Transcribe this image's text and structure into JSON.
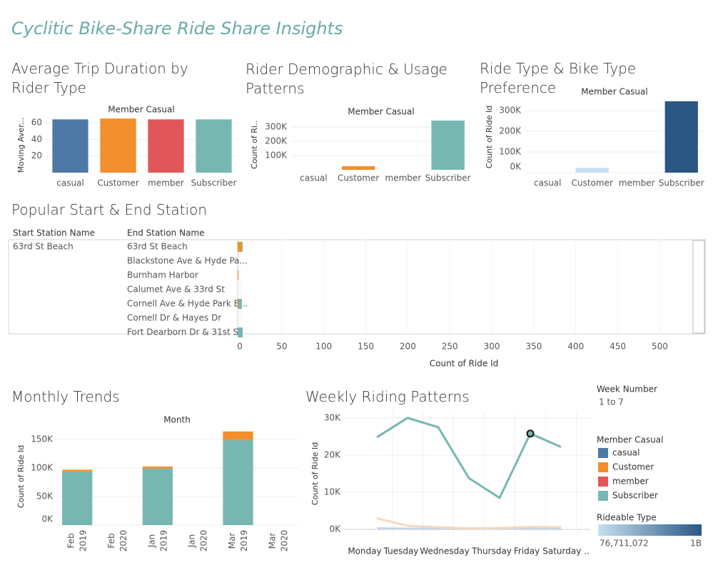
{
  "dashboard_title": "Cyclitic Bike-Share Ride Share Insights",
  "chart_data": [
    {
      "type": "bar",
      "title": "Average Trip Duration  by Rider Type",
      "header": "Member Casual",
      "ylabel": "Moving Aver...",
      "categories": [
        "casual",
        "Customer",
        "member",
        "Subscriber"
      ],
      "values": [
        64,
        65,
        64,
        64
      ],
      "colors": [
        "#4e79a7",
        "#f28e2b",
        "#e15759",
        "#76b7b2"
      ],
      "ylim": [
        0,
        66
      ],
      "yticks": [
        20,
        40,
        60
      ],
      "grid": true
    },
    {
      "type": "bar",
      "title": "Rider Demographic & Usage Patterns",
      "header": "Member Casual",
      "ylabel": "Count of Ri..",
      "categories": [
        "casual",
        "Customer",
        "member",
        "Subscriber"
      ],
      "values": [
        null,
        25000,
        null,
        345000
      ],
      "colors": [
        "#4e79a7",
        "#f28e2b",
        "#e15759",
        "#76b7b2"
      ],
      "ylim": [
        0,
        350000
      ],
      "yticks": [
        {
          "value": 100000,
          "label": "100K"
        },
        {
          "value": 200000,
          "label": "200K"
        },
        {
          "value": 300000,
          "label": "300K"
        }
      ],
      "grid": true
    },
    {
      "type": "bar",
      "title": "Ride Type & Bike Type Preference",
      "header": "Member Casual",
      "ylabel": "Count of Ride Id",
      "categories": [
        "casual",
        "Customer",
        "member",
        "Subscriber"
      ],
      "values": [
        null,
        23000,
        null,
        345000
      ],
      "colors": [
        "#c6e0f2",
        "#c6e0f2",
        "#c6e0f2",
        "#2a5783"
      ],
      "ylim": [
        0,
        345000
      ],
      "yticks": [
        {
          "value": 0,
          "label": "0K"
        },
        {
          "value": 100000,
          "label": "100K"
        },
        {
          "value": 200000,
          "label": "200K"
        },
        {
          "value": 300000,
          "label": "300K"
        }
      ],
      "grid": true
    },
    {
      "type": "hbar",
      "title": "Popular Start & End Station",
      "columns": [
        "Start Station Name",
        "End Station Name"
      ],
      "start_station": "63rd St Beach",
      "categories": [
        "63rd St Beach",
        "Blackstone Ave & Hyde Pa...",
        "Burnham Harbor",
        "Calumet Ave & 33rd St",
        "Cornell Ave & Hyde Park B...",
        "Cornell Dr & Hayes Dr",
        "Fort Dearborn Dr & 31st St"
      ],
      "series": [
        {
          "color": "#f28e2b",
          "values": [
            5,
            null,
            1,
            null,
            1,
            null,
            null
          ]
        },
        {
          "color": "#76b7b2",
          "values": [
            1,
            null,
            null,
            null,
            4,
            null,
            6
          ]
        }
      ],
      "xlabel": "Count of Ride Id",
      "xlim": [
        0,
        537
      ],
      "xticks": [
        0,
        50,
        100,
        150,
        200,
        250,
        300,
        350,
        400,
        450,
        500
      ],
      "grid": true
    },
    {
      "type": "bar",
      "stacked": true,
      "title": "Monthly Trends",
      "header": "Month",
      "ylabel": "Count of Ride Id",
      "categories": [
        [
          "Feb",
          "2019"
        ],
        [
          "Feb",
          "2020"
        ],
        [
          "Jan",
          "2019"
        ],
        [
          "Jan",
          "2020"
        ],
        [
          "Mar",
          "2019"
        ],
        [
          "Mar",
          "2020"
        ]
      ],
      "series": [
        {
          "color": "#76b7b2",
          "values": [
            94000,
            null,
            99000,
            null,
            149000,
            null
          ]
        },
        {
          "color": "#f28e2b",
          "values": [
            3000,
            null,
            3500,
            null,
            15000,
            null
          ]
        }
      ],
      "ylim": [
        0,
        170000
      ],
      "yticks": [
        {
          "value": 0,
          "label": "0K"
        },
        {
          "value": 50000,
          "label": "50K"
        },
        {
          "value": 100000,
          "label": "100K"
        },
        {
          "value": 150000,
          "label": "150K"
        }
      ],
      "grid": true
    },
    {
      "type": "line",
      "title": "Weekly Riding Patterns",
      "ylabel": "Count of Ride Id",
      "categories": [
        "Monday",
        "Tuesday",
        "Wednesday",
        "Thursday",
        "Friday",
        "Saturday ..",
        null
      ],
      "series": [
        {
          "color": "#c8d3e6",
          "values": [
            300,
            200,
            200,
            200,
            200,
            200,
            200
          ]
        },
        {
          "color": "#f5d9bd",
          "values": [
            3000,
            1000,
            600,
            300,
            400,
            700,
            600
          ]
        },
        {
          "color": "#76b7b2",
          "values": [
            24800,
            30000,
            27500,
            13800,
            8500,
            25800,
            22200
          ]
        }
      ],
      "ylim": [
        -1500,
        31500
      ],
      "yticks": [
        {
          "value": 0,
          "label": "0K"
        },
        {
          "value": 10000,
          "label": "10K"
        },
        {
          "value": 20000,
          "label": "20K"
        },
        {
          "value": 30000,
          "label": "30K"
        }
      ],
      "grid": true
    }
  ],
  "legend": {
    "week_title": "Week Number",
    "week_range": "1 to 7",
    "member_title": "Member Casual",
    "items": [
      {
        "name": "casual",
        "color": "#4e79a7"
      },
      {
        "name": "Customer",
        "color": "#f28e2b"
      },
      {
        "name": "member",
        "color": "#e15759"
      },
      {
        "name": "Subscriber",
        "color": "#76b7b2"
      }
    ],
    "rideable_title": "Rideable Type",
    "gradient": {
      "colors": [
        "#c6e0f2",
        "#2a5783"
      ],
      "min_label": "76,711,072",
      "max_label": "1B"
    }
  }
}
